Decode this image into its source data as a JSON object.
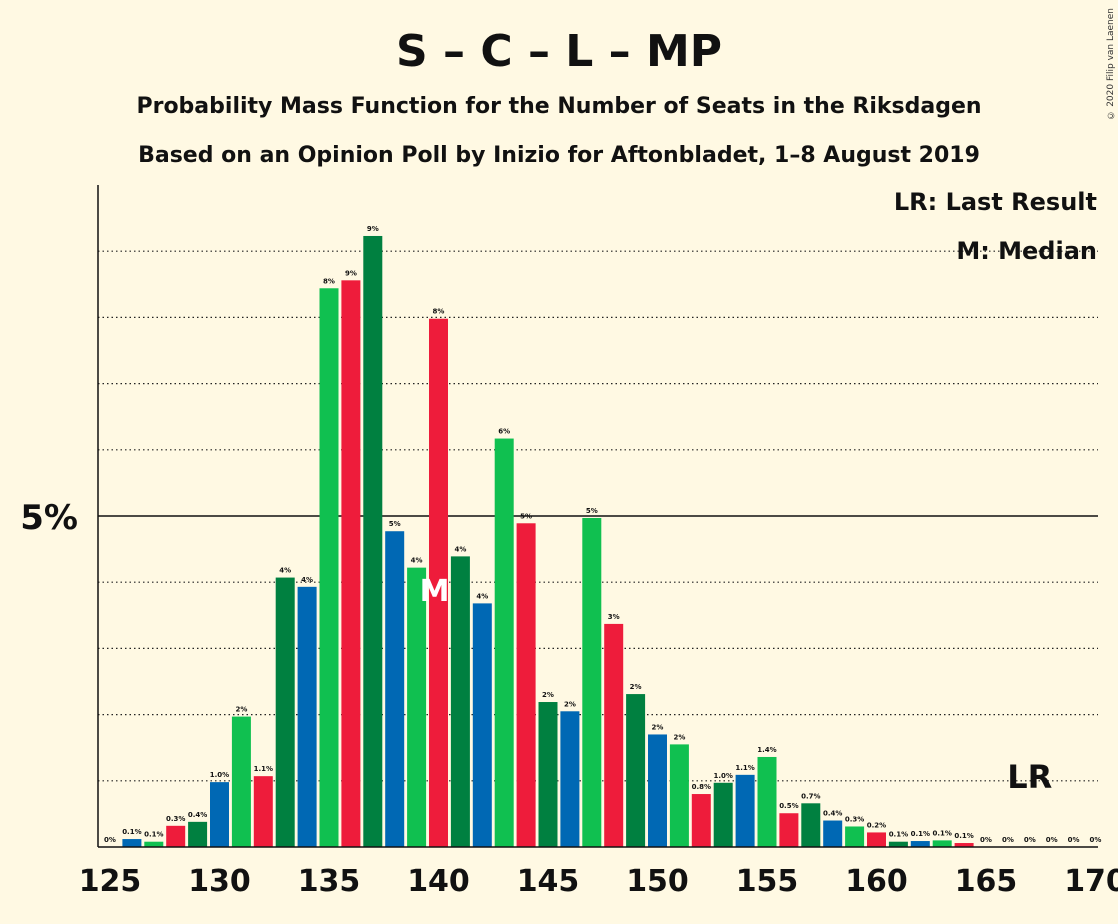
{
  "title": "S – C – L – MP",
  "subtitle1": "Probability Mass Function for the Number of Seats in the Riksdagen",
  "subtitle2": "Based on an Opinion Poll by Inizio for Aftonbladet, 1–8 August 2019",
  "copyright": "© 2020 Filip van Laenen",
  "legend": {
    "last_result": "LR: Last Result",
    "median": "M: Median"
  },
  "markers": {
    "median_label": "M",
    "median_seat": 140,
    "last_result_label": "LR",
    "last_result_seat": 167
  },
  "colors": {
    "background": "#fff9e3",
    "green_light": "#10c050",
    "green_dark": "#008040",
    "red": "#ee1c3b",
    "blue": "#0068b4"
  },
  "chart_data": {
    "type": "bar",
    "x": [
      126,
      127,
      128,
      129,
      130,
      131,
      132,
      133,
      134,
      135,
      136,
      137,
      138,
      139,
      140,
      141,
      142,
      143,
      144,
      145,
      146,
      147,
      148,
      149,
      150,
      151,
      152,
      153,
      154,
      155,
      156,
      157,
      158,
      159,
      160,
      161,
      162,
      163,
      164,
      165,
      166,
      167,
      168,
      169,
      170
    ],
    "values": [
      0.12,
      0.08,
      0.32,
      0.38,
      0.98,
      1.97,
      1.07,
      4.07,
      3.93,
      8.44,
      8.56,
      9.23,
      4.77,
      4.22,
      7.98,
      4.39,
      3.68,
      6.17,
      4.89,
      2.19,
      2.05,
      4.97,
      3.37,
      2.31,
      1.7,
      1.55,
      0.8,
      0.97,
      1.09,
      1.36,
      0.51,
      0.66,
      0.4,
      0.31,
      0.22,
      0.08,
      0.09,
      0.1,
      0.06,
      0,
      0,
      0,
      0,
      0,
      0
    ],
    "data_labels": [
      "0.1%",
      "0.1%",
      "0.3%",
      "0.4%",
      "1.0%",
      "2%",
      "1.1%",
      "4%",
      "4%",
      "8%",
      "9%",
      "9%",
      "5%",
      "4%",
      "8%",
      "4%",
      "4%",
      "6%",
      "5%",
      "2%",
      "2%",
      "5%",
      "3%",
      "2%",
      "2%",
      "2%",
      "0.8%",
      "1.0%",
      "1.1%",
      "1.4%",
      "0.5%",
      "0.7%",
      "0.4%",
      "0.3%",
      "0.2%",
      "0.1%",
      "0.1%",
      "0.1%",
      "0.1%",
      "0%",
      "0%",
      "0%",
      "0%",
      "0%",
      "0%"
    ],
    "bar_colors": [
      "blue",
      "green_light",
      "red",
      "green_dark",
      "blue",
      "green_light",
      "red",
      "green_dark",
      "blue",
      "green_light",
      "red",
      "green_dark",
      "blue",
      "green_light",
      "red",
      "green_dark",
      "blue",
      "green_light",
      "red",
      "green_dark",
      "blue",
      "green_light",
      "red",
      "green_dark",
      "blue",
      "green_light",
      "red",
      "green_dark",
      "blue",
      "green_light",
      "red",
      "green_dark",
      "blue",
      "green_light",
      "red",
      "green_dark",
      "blue",
      "green_light",
      "red",
      "green_dark",
      "blue",
      "green_light",
      "red",
      "green_dark",
      "blue"
    ],
    "zero_label_seat": 125,
    "zero_label_text": "0%",
    "x_ticks": [
      125,
      130,
      135,
      140,
      145,
      150,
      155,
      160,
      165,
      170
    ],
    "x_tick_labels": [
      "125",
      "130",
      "135",
      "140",
      "145",
      "150",
      "155",
      "160",
      "165",
      "170"
    ],
    "y_tick_label": "5%",
    "y_major": 5,
    "y_minor_step": 1,
    "xlim": [
      125,
      170
    ],
    "ylim": [
      0,
      10
    ],
    "grid": "dotted"
  }
}
